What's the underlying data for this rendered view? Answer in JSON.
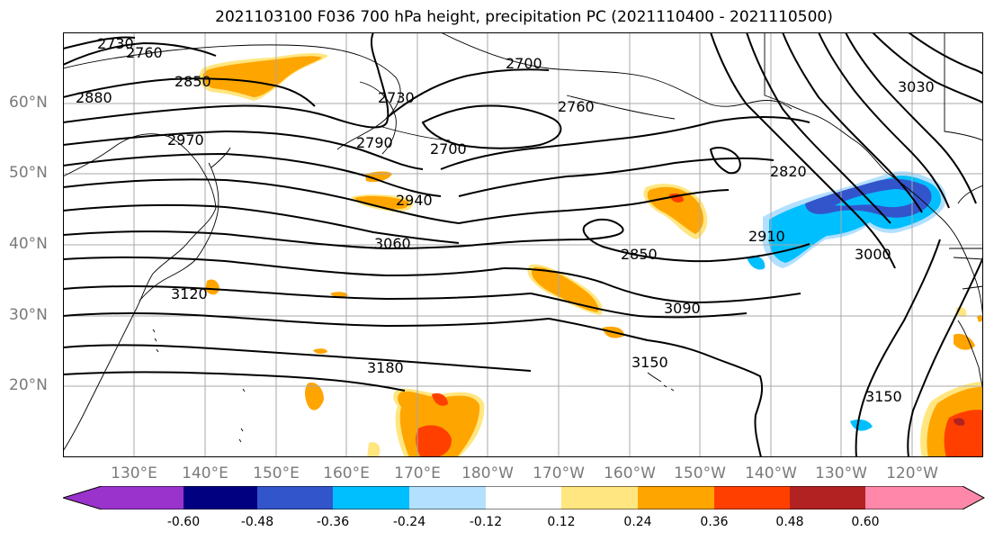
{
  "title": "2021103100 F036 700 hPa height, precipitation PC (2021110400 - 2021110500)",
  "latitude_labels": [
    "60°N",
    "50°N",
    "40°N",
    "30°N",
    "20°N"
  ],
  "longitude_labels": [
    "130°E",
    "140°E",
    "150°E",
    "160°E",
    "170°E",
    "180°W",
    "170°W",
    "160°W",
    "150°W",
    "140°W",
    "130°W",
    "120°W"
  ],
  "contour_labels": [
    "2730",
    "2760",
    "2850",
    "2880",
    "2730",
    "2700",
    "2760",
    "2970",
    "2790",
    "2700",
    "3030",
    "2820",
    "2940",
    "3060",
    "2910",
    "2850",
    "3000",
    "3120",
    "3090",
    "3180",
    "3150",
    "3150"
  ],
  "colorbar": {
    "ticks": [
      "-0.60",
      "-0.48",
      "-0.36",
      "-0.24",
      "-0.12",
      "0.12",
      "0.24",
      "0.36",
      "0.48",
      "0.60"
    ],
    "colors": [
      "#9933cc",
      "#000080",
      "#3355cc",
      "#00bfff",
      "#b3e0ff",
      "#ffffff",
      "#ffe680",
      "#ffa500",
      "#ff3f00",
      "#b22222",
      "#ff88aa"
    ]
  }
}
